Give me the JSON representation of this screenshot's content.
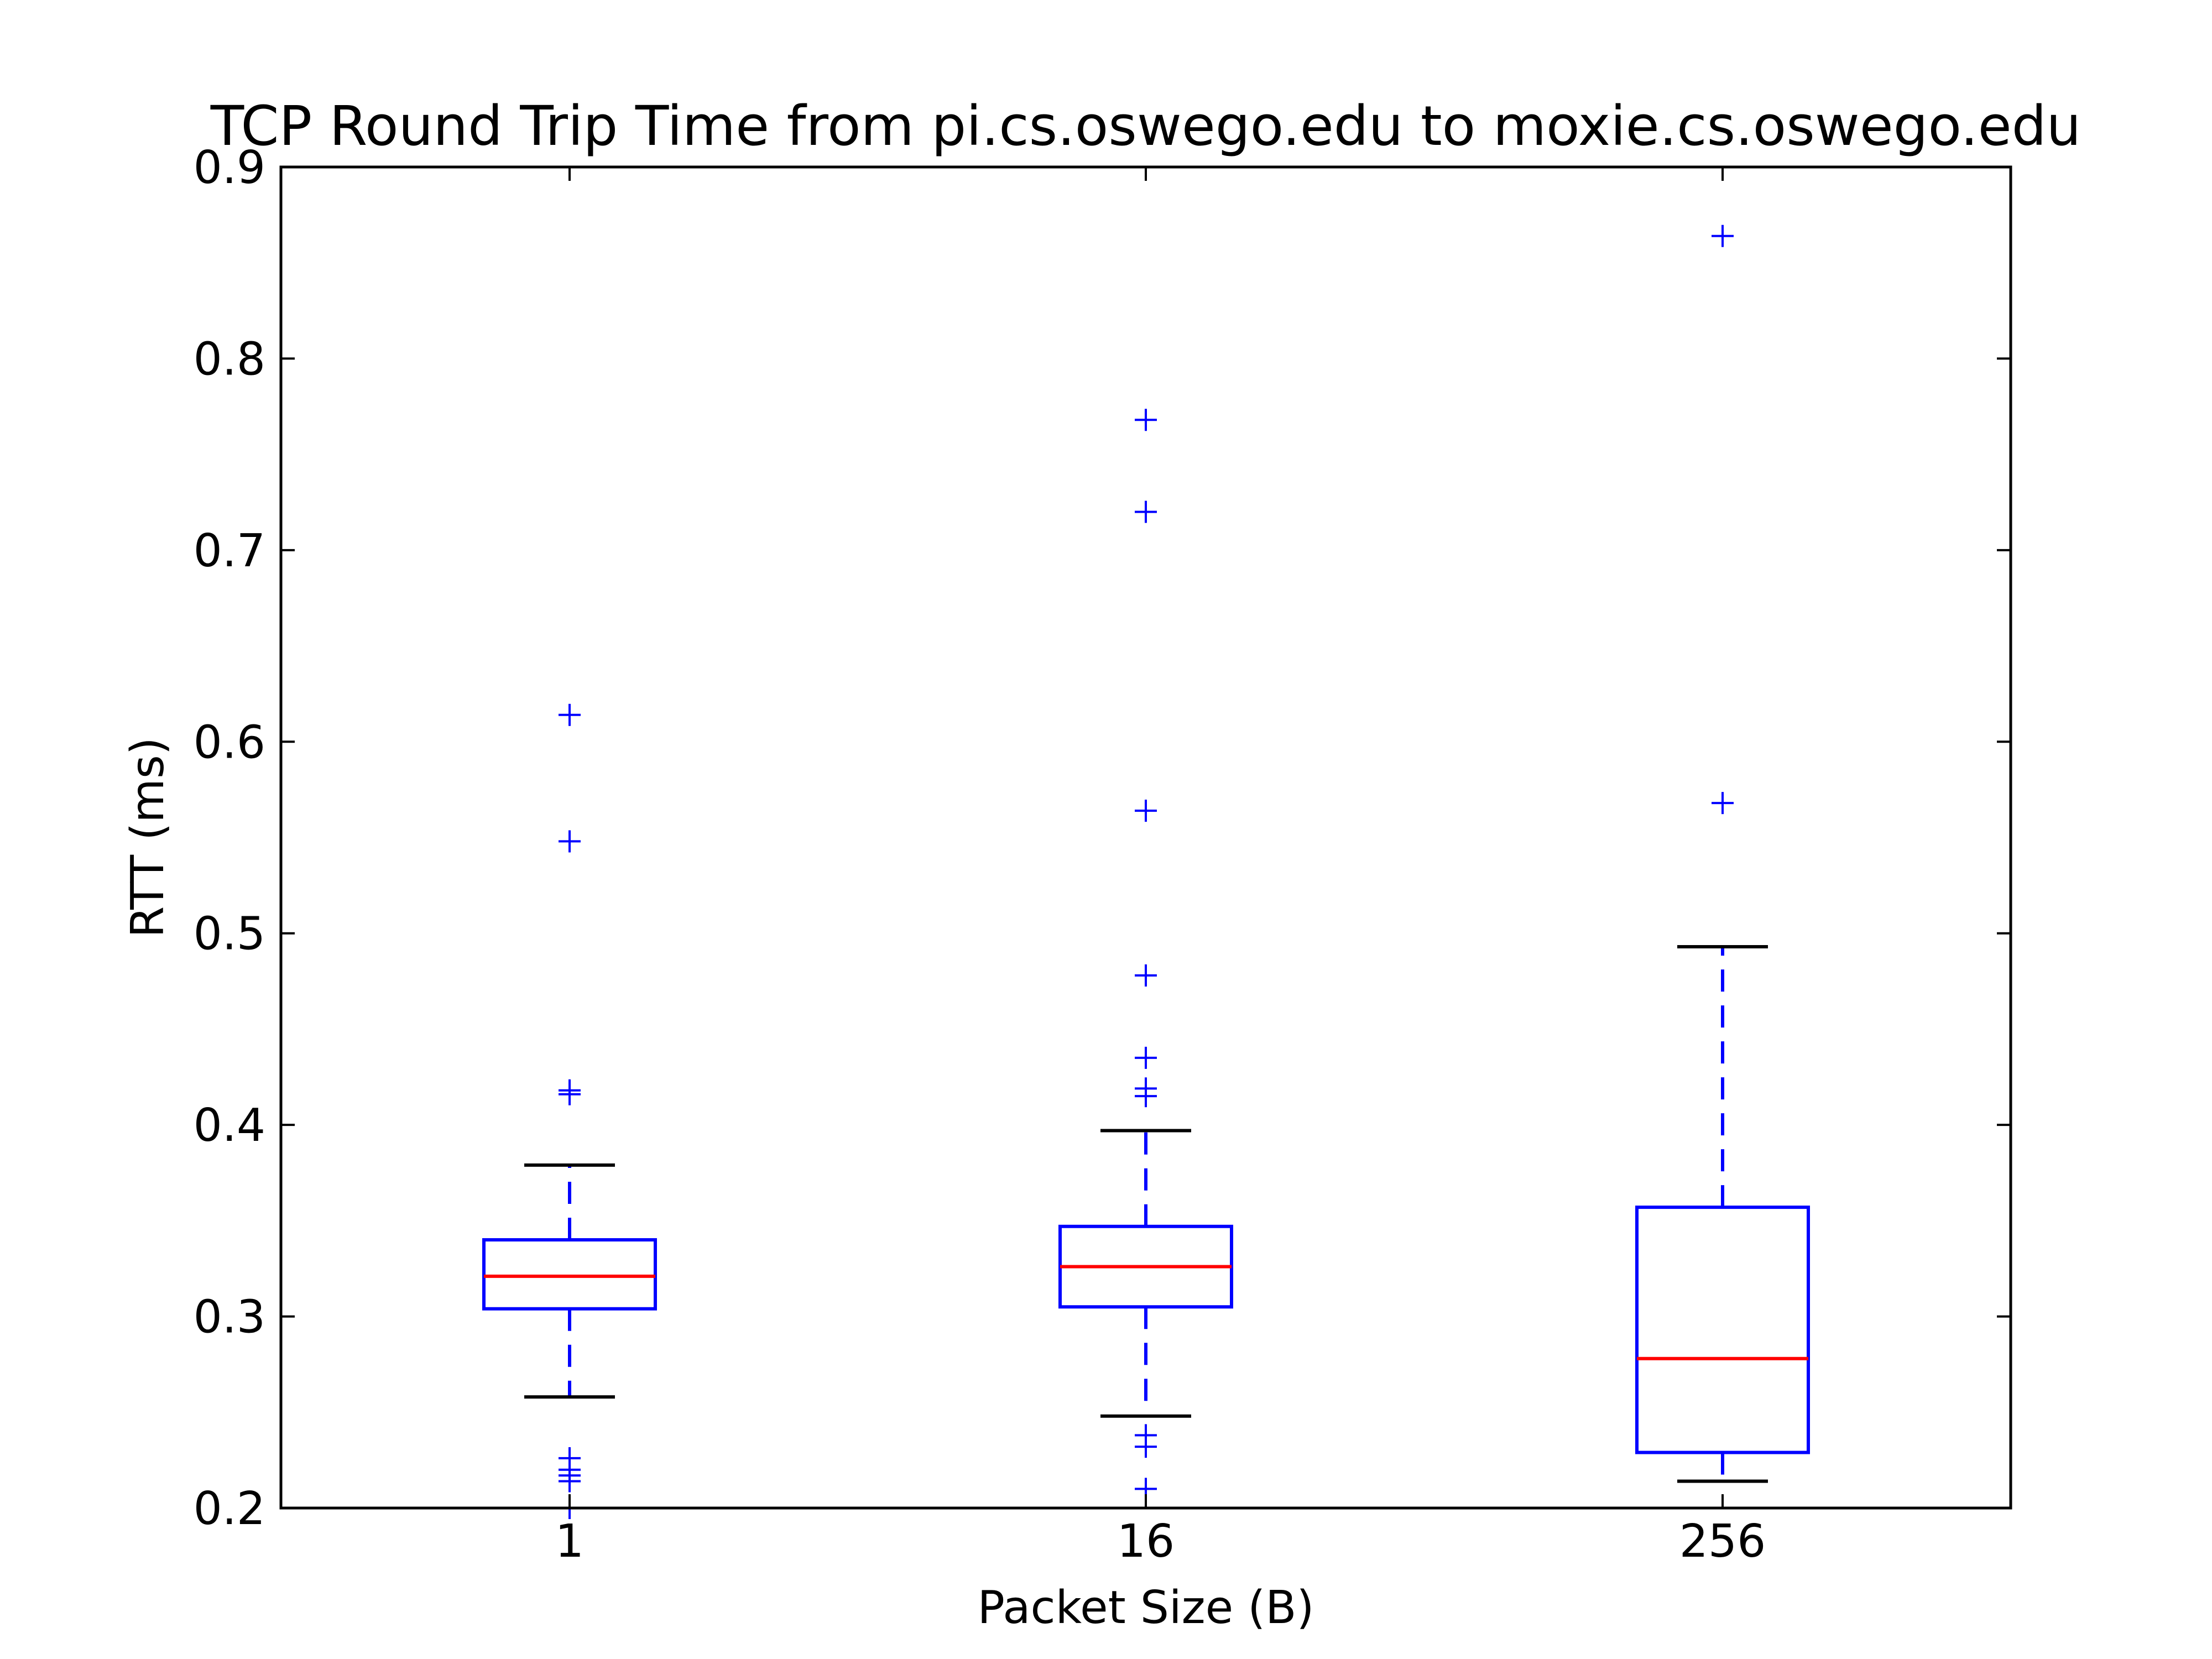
{
  "chart_data": {
    "type": "boxplot",
    "title": "TCP Round Trip Time from pi.cs.oswego.edu to moxie.cs.oswego.edu",
    "xlabel": "Packet Size (B)",
    "ylabel": "RTT (ms)",
    "ylim": [
      0.2,
      0.9
    ],
    "yticks": [
      0.2,
      0.3,
      0.4,
      0.5,
      0.6,
      0.7,
      0.8,
      0.9
    ],
    "ytick_labels": [
      "0.2",
      "0.3",
      "0.4",
      "0.5",
      "0.6",
      "0.7",
      "0.8",
      "0.9"
    ],
    "categories": [
      "1",
      "16",
      "256"
    ],
    "grid": false,
    "legend": "none",
    "boxes": [
      {
        "category": "1",
        "whisker_low": 0.258,
        "q1": 0.304,
        "median": 0.321,
        "q3": 0.34,
        "whisker_high": 0.379,
        "outliers": [
          0.614,
          0.548,
          0.418,
          0.416,
          0.226,
          0.22,
          0.217,
          0.214,
          0.2
        ]
      },
      {
        "category": "16",
        "whisker_low": 0.248,
        "q1": 0.305,
        "median": 0.326,
        "q3": 0.347,
        "whisker_high": 0.397,
        "outliers": [
          0.768,
          0.72,
          0.564,
          0.478,
          0.435,
          0.419,
          0.415,
          0.238,
          0.232,
          0.21
        ]
      },
      {
        "category": "256",
        "whisker_low": 0.214,
        "q1": 0.229,
        "median": 0.278,
        "q3": 0.357,
        "whisker_high": 0.493,
        "outliers": [
          0.864,
          0.568
        ]
      }
    ],
    "colors": {
      "box": "#0000ff",
      "median": "#ff0000",
      "whisker_cap": "#000000",
      "outlier": "#0000ff",
      "axes": "#000000"
    }
  }
}
